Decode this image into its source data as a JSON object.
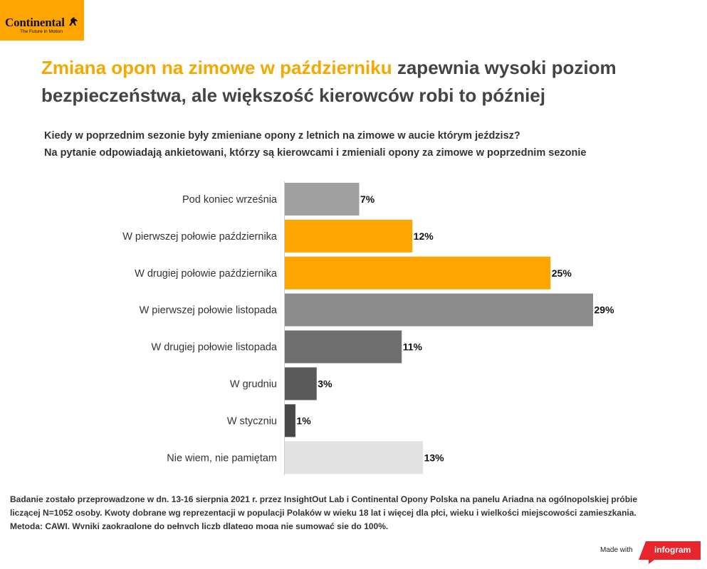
{
  "brand": {
    "name": "Continental",
    "tagline": "The Future in Motion"
  },
  "title": {
    "highlight": "Zmiana opon na zimowe w październiku",
    "rest": " zapewnia wysoki poziom bezpieczeństwa, ale większość kierowców robi to później"
  },
  "subtitle": {
    "line1": "Kiedy w poprzednim sezonie były zmieniane opony z letnich na zimowe w aucie którym jeździsz?",
    "line2": "Na pytanie odpowiadają ankietowani, którzy są kierowcami i zmieniali opony za zimowe w poprzednim sezonie"
  },
  "colors": {
    "accent": "#ffa500",
    "title_highlight": "#f5a800",
    "text": "#333333"
  },
  "chart_data": {
    "type": "bar",
    "orientation": "horizontal",
    "categories": [
      "Pod koniec września",
      "W pierwszej połowie października",
      "W drugiej połowie października",
      "W pierwszej połowie listopada",
      "W drugiej połowie listopada",
      "W grudniu",
      "W styczniu",
      "Nie wiem, nie pamiętam"
    ],
    "values": [
      7,
      12,
      25,
      29,
      11,
      3,
      1,
      13
    ],
    "value_labels": [
      "7%",
      "12%",
      "25%",
      "29%",
      "11%",
      "3%",
      "1%",
      "13%"
    ],
    "colors": [
      "#a0a0a0",
      "#ffa500",
      "#ffa500",
      "#8c8c8c",
      "#6e6e6e",
      "#5a5a5a",
      "#484848",
      "#e2e2e2"
    ],
    "xlim": [
      0,
      29
    ],
    "grid": false
  },
  "footnote": {
    "line1": "Badanie zostało przeprowadzone w dn. 13-16 sierpnia 2021 r. przez InsightOut Lab i Continental Opony Polska na panelu Ariadna na ogólnopolskiej próbie",
    "line2": "liczącej N=1052 osoby. Kwoty dobrane wg reprezentacji w populacji Polaków w wieku 18 lat i więcej dla płci, wieku i wielkości miejscowości zamieszkania.",
    "line3": "Metoda: CAWI. Wyniki zaokrąglone do pełnych liczb dlatego mogą nie sumować się do 100%."
  },
  "credit": {
    "made_with": "Made with",
    "tool": "infogram"
  }
}
